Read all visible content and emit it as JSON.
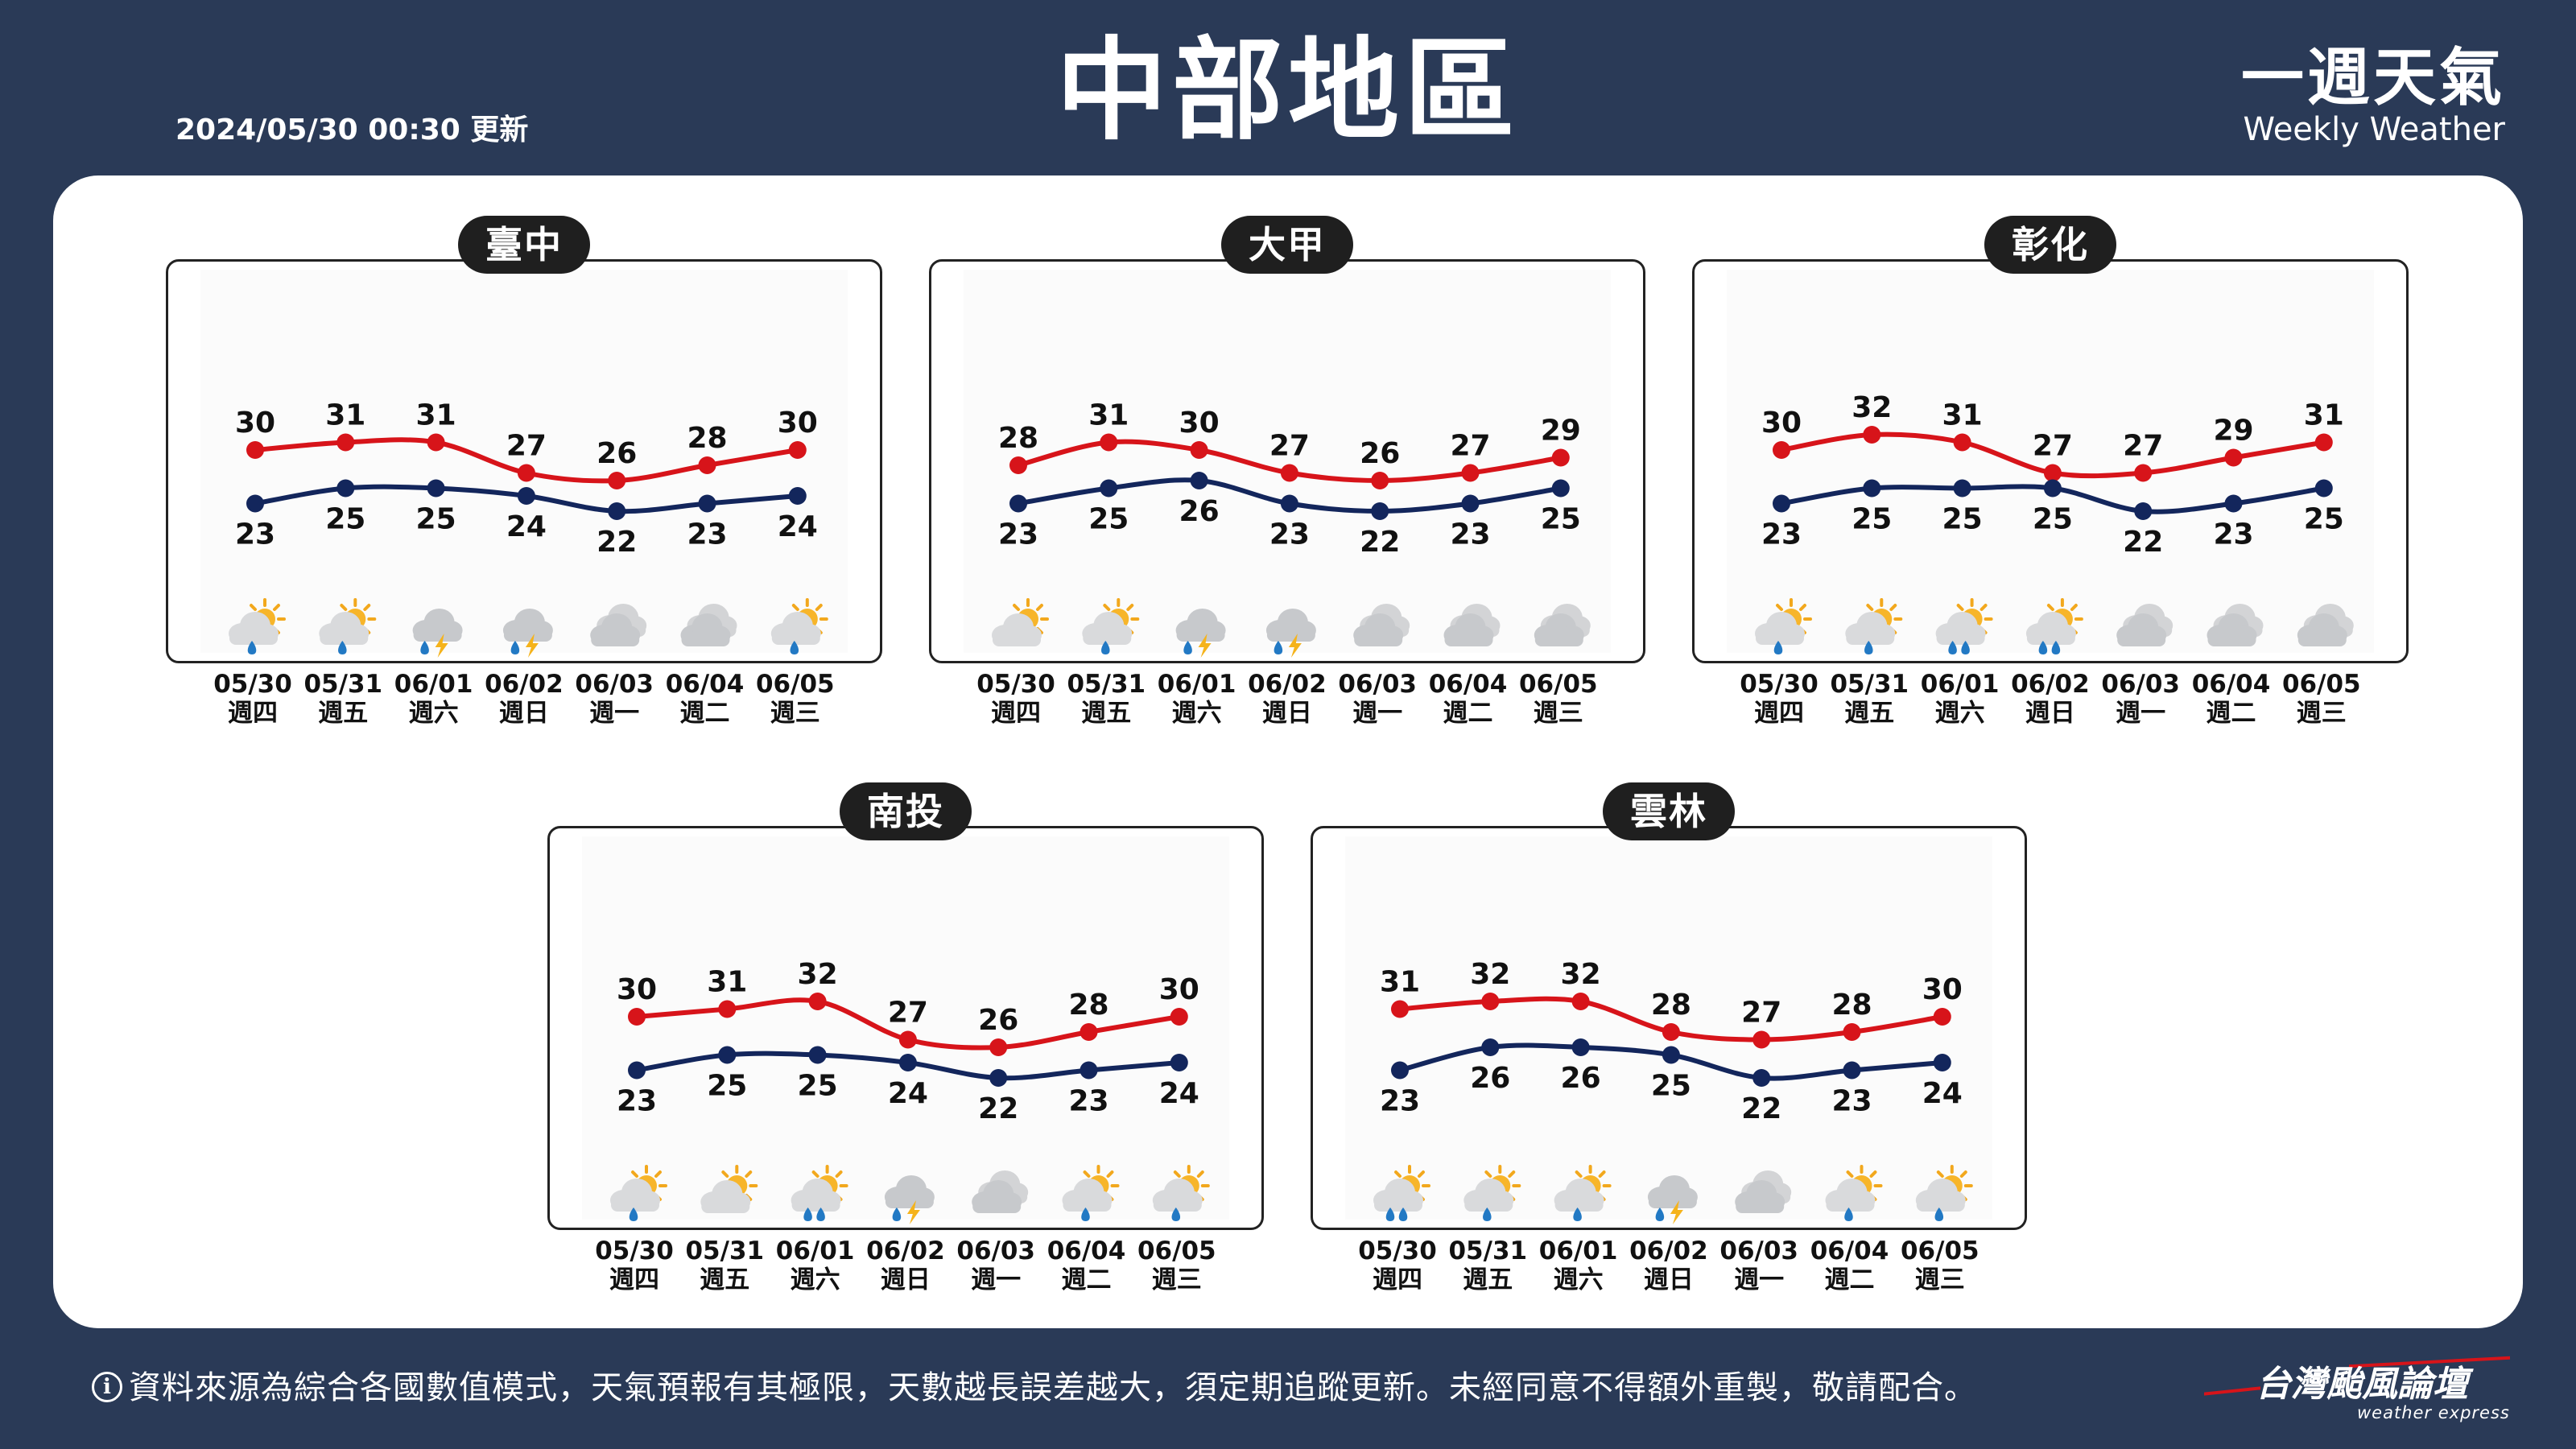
{
  "header": {
    "title": "中部地區",
    "updated": "2024/05/30 00:30 更新",
    "brand_title": "一週天氣",
    "brand_subtitle": "Weekly Weather"
  },
  "colors": {
    "background": "#2a3a57",
    "high_line": "#d7141a",
    "low_line": "#13265c"
  },
  "days": [
    {
      "date": "05/30",
      "weekday": "週四"
    },
    {
      "date": "05/31",
      "weekday": "週五"
    },
    {
      "date": "06/01",
      "weekday": "週六"
    },
    {
      "date": "06/02",
      "weekday": "週日"
    },
    {
      "date": "06/03",
      "weekday": "週一"
    },
    {
      "date": "06/04",
      "weekday": "週二"
    },
    {
      "date": "06/05",
      "weekday": "週三"
    }
  ],
  "chart_data": [
    {
      "type": "line",
      "region": "臺中",
      "series": [
        {
          "values": [
            30,
            31,
            31,
            27,
            26,
            28,
            30
          ]
        },
        {
          "values": [
            23,
            25,
            25,
            24,
            22,
            23,
            24
          ]
        }
      ],
      "weather_icons": [
        "partly-cloudy-rain-icon",
        "partly-cloudy-rain-icon",
        "thunderstorm-icon",
        "thunderstorm-icon",
        "cloudy-icon",
        "cloudy-icon",
        "partly-cloudy-rain-icon"
      ]
    },
    {
      "type": "line",
      "region": "大甲",
      "series": [
        {
          "values": [
            28,
            31,
            30,
            27,
            26,
            27,
            29
          ]
        },
        {
          "values": [
            23,
            25,
            26,
            23,
            22,
            23,
            25
          ]
        }
      ],
      "weather_icons": [
        "partly-cloudy-icon",
        "partly-cloudy-rain-icon",
        "thunderstorm-icon",
        "thunderstorm-icon",
        "cloudy-icon",
        "cloudy-icon",
        "cloudy-icon"
      ]
    },
    {
      "type": "line",
      "region": "彰化",
      "series": [
        {
          "values": [
            30,
            32,
            31,
            27,
            27,
            29,
            31
          ]
        },
        {
          "values": [
            23,
            25,
            25,
            25,
            22,
            23,
            25
          ]
        }
      ],
      "weather_icons": [
        "partly-cloudy-rain-icon",
        "partly-cloudy-rain-icon",
        "partly-cloudy-heavy-rain-icon",
        "partly-cloudy-heavy-rain-icon",
        "cloudy-icon",
        "cloudy-icon",
        "cloudy-icon"
      ]
    },
    {
      "type": "line",
      "region": "南投",
      "series": [
        {
          "values": [
            30,
            31,
            32,
            27,
            26,
            28,
            30
          ]
        },
        {
          "values": [
            23,
            25,
            25,
            24,
            22,
            23,
            24
          ]
        }
      ],
      "weather_icons": [
        "partly-cloudy-rain-icon",
        "partly-cloudy-icon",
        "partly-cloudy-heavy-rain-icon",
        "thunderstorm-icon",
        "cloudy-icon",
        "partly-cloudy-rain-icon",
        "partly-cloudy-rain-icon"
      ]
    },
    {
      "type": "line",
      "region": "雲林",
      "series": [
        {
          "values": [
            31,
            32,
            32,
            28,
            27,
            28,
            30
          ]
        },
        {
          "values": [
            23,
            26,
            26,
            25,
            22,
            23,
            24
          ]
        }
      ],
      "weather_icons": [
        "partly-cloudy-heavy-rain-icon",
        "partly-cloudy-rain-icon",
        "partly-cloudy-rain-icon",
        "thunderstorm-icon",
        "cloudy-icon",
        "partly-cloudy-rain-icon",
        "partly-cloudy-rain-icon"
      ]
    }
  ],
  "footer": {
    "info_symbol": "i",
    "note": "資料來源為綜合各國數值模式，天氣預報有其極限，天數越長誤差越大，須定期追蹤更新。未經同意不得額外重製，敬請配合。",
    "logo_text": "台灣颱風論壇",
    "logo_subtext": "weather express"
  }
}
